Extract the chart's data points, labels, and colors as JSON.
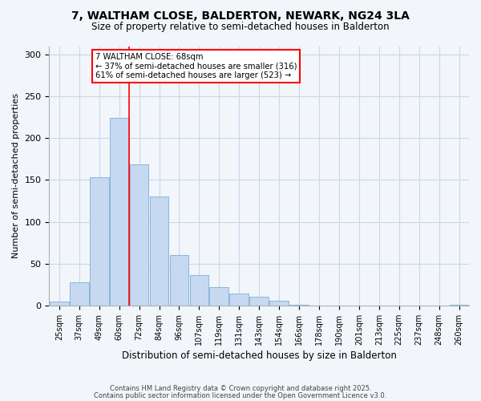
{
  "title1": "7, WALTHAM CLOSE, BALDERTON, NEWARK, NG24 3LA",
  "title2": "Size of property relative to semi-detached houses in Balderton",
  "xlabel": "Distribution of semi-detached houses by size in Balderton",
  "ylabel": "Number of semi-detached properties",
  "bar_labels": [
    "25sqm",
    "37sqm",
    "49sqm",
    "60sqm",
    "72sqm",
    "84sqm",
    "96sqm",
    "107sqm",
    "119sqm",
    "131sqm",
    "143sqm",
    "154sqm",
    "166sqm",
    "178sqm",
    "190sqm",
    "201sqm",
    "213sqm",
    "225sqm",
    "237sqm",
    "248sqm",
    "260sqm"
  ],
  "bar_values": [
    5,
    28,
    153,
    224,
    169,
    130,
    60,
    36,
    22,
    14,
    10,
    6,
    1,
    0,
    0,
    0,
    0,
    0,
    0,
    0,
    1
  ],
  "bar_color": "#c6d9f1",
  "bar_edge_color": "#7bafd4",
  "vline_x": 3.5,
  "vline_color": "red",
  "annotation_title": "7 WALTHAM CLOSE: 68sqm",
  "annotation_line1": "← 37% of semi-detached houses are smaller (316)",
  "annotation_line2": "61% of semi-detached houses are larger (523) →",
  "annotation_box_color": "white",
  "annotation_box_edge": "red",
  "ylim": [
    0,
    310
  ],
  "yticks": [
    0,
    50,
    100,
    150,
    200,
    250,
    300
  ],
  "footer1": "Contains HM Land Registry data © Crown copyright and database right 2025.",
  "footer2": "Contains public sector information licensed under the Open Government Licence v3.0.",
  "bg_color": "#f2f5fa",
  "grid_color": "#c8d8ea"
}
